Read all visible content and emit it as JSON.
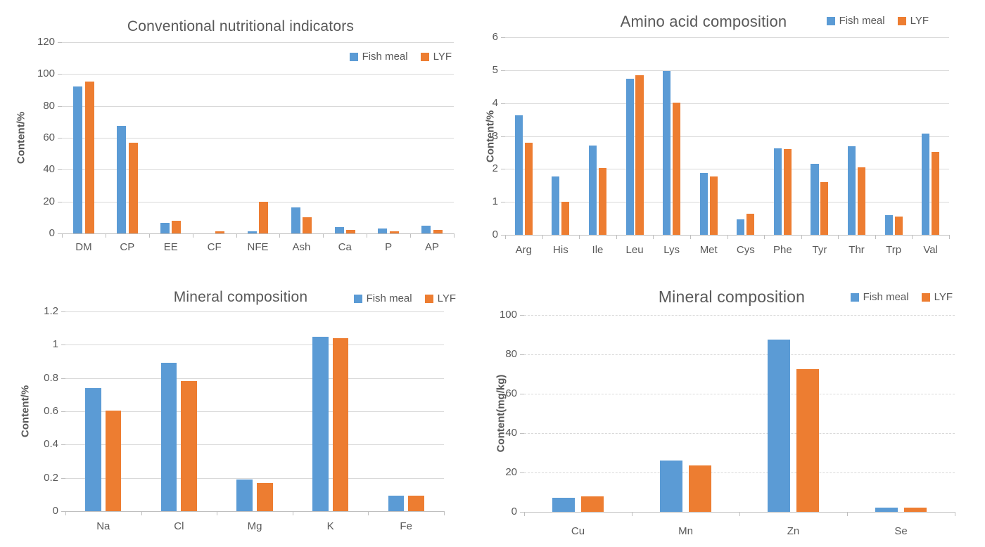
{
  "figure": {
    "background": "#FFFFFF"
  },
  "palette": {
    "fish_meal": "#5B9BD5",
    "lyf": "#ED7D31",
    "text": "#595959",
    "gridline": "#D9D9D9",
    "axis": "#BFBFBF"
  },
  "chart_data": [
    {
      "type": "bar",
      "title": "Conventional nutritional indicators",
      "xlabel": "",
      "ylabel": "Content/%",
      "ylim": [
        0,
        120
      ],
      "ytick_step": 20,
      "grid": true,
      "legend_position": "inside-top-right",
      "categories": [
        "DM",
        "CP",
        "EE",
        "CF",
        "NFE",
        "Ash",
        "Ca",
        "P",
        "AP"
      ],
      "series": [
        {
          "name": "Fish meal",
          "color": "#5B9BD5",
          "values": [
            92,
            67.5,
            6.5,
            0,
            1.5,
            16.3,
            4,
            3,
            5
          ]
        },
        {
          "name": "LYF",
          "color": "#ED7D31",
          "values": [
            95.5,
            57,
            7.8,
            1.2,
            19.7,
            10.3,
            2,
            1.2,
            2.3
          ]
        }
      ]
    },
    {
      "type": "bar",
      "title": "Amino acid composition",
      "xlabel": "",
      "ylabel": "Content/%",
      "ylim": [
        0,
        6
      ],
      "ytick_step": 1,
      "grid": true,
      "legend_position": "top-right",
      "categories": [
        "Arg",
        "His",
        "Ile",
        "Leu",
        "Lys",
        "Met",
        "Cys",
        "Phe",
        "Tyr",
        "Thr",
        "Trp",
        "Val"
      ],
      "series": [
        {
          "name": "Fish meal",
          "color": "#5B9BD5",
          "values": [
            3.62,
            1.78,
            2.72,
            4.75,
            4.98,
            1.88,
            0.48,
            2.62,
            2.15,
            2.7,
            0.6,
            3.08
          ]
        },
        {
          "name": "LYF",
          "color": "#ED7D31",
          "values": [
            2.8,
            1.0,
            2.03,
            4.85,
            4.02,
            1.77,
            0.63,
            2.6,
            1.6,
            2.04,
            0.56,
            2.53
          ]
        }
      ]
    },
    {
      "type": "bar",
      "title": "Mineral composition",
      "xlabel": "",
      "ylabel": "Content/%",
      "ylim": [
        0,
        1.2
      ],
      "ytick_step": 0.2,
      "grid": true,
      "legend_position": "top-right",
      "categories": [
        "Na",
        "Cl",
        "Mg",
        "K",
        "Fe"
      ],
      "series": [
        {
          "name": "Fish meal",
          "color": "#5B9BD5",
          "values": [
            0.74,
            0.89,
            0.19,
            1.05,
            0.095
          ]
        },
        {
          "name": "LYF",
          "color": "#ED7D31",
          "values": [
            0.605,
            0.78,
            0.17,
            1.04,
            0.095
          ]
        }
      ]
    },
    {
      "type": "bar",
      "title": "Mineral composition",
      "xlabel": "",
      "ylabel": "Content(mg/kg)",
      "ylim": [
        0,
        100
      ],
      "ytick_step": 20,
      "grid": true,
      "legend_position": "top-right",
      "categories": [
        "Cu",
        "Mn",
        "Zn",
        "Se"
      ],
      "series": [
        {
          "name": "Fish meal",
          "color": "#5B9BD5",
          "values": [
            7,
            26,
            87.5,
            2
          ]
        },
        {
          "name": "LYF",
          "color": "#ED7D31",
          "values": [
            8,
            23.5,
            72.5,
            2
          ]
        }
      ]
    }
  ]
}
